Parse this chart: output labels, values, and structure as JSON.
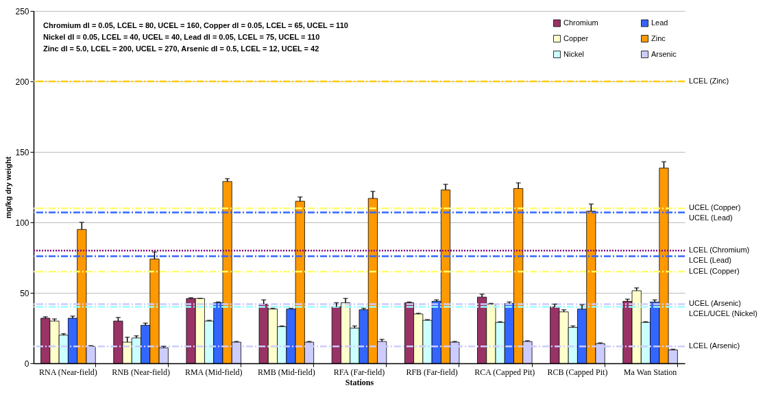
{
  "chart_data": {
    "type": "bar",
    "xlabel": "Stations",
    "ylabel": "mg/kg dry weight",
    "categories": [
      "RNA (Near-field)",
      "RNB (Near-field)",
      "RMA (Mid-field)",
      "RMB (Mid-field)",
      "RFA (Far-field)",
      "RFB (Far-field)",
      "RCA (Capped Pit)",
      "RCB (Capped Pit)",
      "Ma Wan Station"
    ],
    "series": [
      {
        "name": "Chromium",
        "color": "#993366",
        "values": [
          32,
          30,
          46,
          42,
          40,
          43,
          47,
          40,
          44
        ],
        "errors": [
          [
            32,
            33
          ],
          [
            30,
            32.5
          ],
          [
            46,
            46.5
          ],
          [
            42,
            45
          ],
          [
            40,
            43
          ],
          [
            43,
            43.5
          ],
          [
            47,
            49
          ],
          [
            40,
            42
          ],
          [
            44,
            45.5
          ]
        ]
      },
      {
        "name": "Copper",
        "color": "#ffffcc",
        "values": [
          30,
          15,
          46,
          38.5,
          43,
          35,
          42,
          36.5,
          51.5
        ],
        "errors": [
          [
            30,
            31.5
          ],
          [
            15,
            18.5
          ],
          [
            46,
            46
          ],
          [
            38.5,
            39
          ],
          [
            43,
            46
          ],
          [
            35,
            35.5
          ],
          [
            42,
            42.5
          ],
          [
            36.5,
            38
          ],
          [
            51.5,
            53.5
          ]
        ]
      },
      {
        "name": "Nickel",
        "color": "#ccffff",
        "values": [
          20,
          18,
          30,
          26,
          25,
          30.5,
          29,
          25.5,
          29
        ],
        "errors": [
          [
            20,
            21
          ],
          [
            18,
            19.5
          ],
          [
            30,
            30.5
          ],
          [
            26,
            26.5
          ],
          [
            25,
            26.5
          ],
          [
            30.5,
            31
          ],
          [
            29,
            29.5
          ],
          [
            25.5,
            26.5
          ],
          [
            29,
            29.5
          ]
        ]
      },
      {
        "name": "Lead",
        "color": "#3366ff",
        "values": [
          32,
          27,
          43,
          38.5,
          38,
          44,
          42.5,
          38.5,
          43.5
        ],
        "errors": [
          [
            32,
            33.5
          ],
          [
            27,
            28.5
          ],
          [
            43,
            43.5
          ],
          [
            38.5,
            39
          ],
          [
            38,
            39
          ],
          [
            44,
            45
          ],
          [
            42.5,
            43.5
          ],
          [
            38.5,
            41.5
          ],
          [
            43.5,
            45
          ]
        ]
      },
      {
        "name": "Zinc",
        "color": "#ff9900",
        "values": [
          95,
          74,
          129,
          115,
          117,
          123,
          124,
          108,
          138.5
        ],
        "errors": [
          [
            95,
            100
          ],
          [
            74,
            79
          ],
          [
            129,
            131
          ],
          [
            115,
            118
          ],
          [
            117,
            122
          ],
          [
            123,
            127
          ],
          [
            124,
            128
          ],
          [
            108,
            113
          ],
          [
            138.5,
            143
          ]
        ]
      },
      {
        "name": "Arsenic",
        "color": "#ccccff",
        "values": [
          12,
          11,
          15,
          15,
          15.5,
          15,
          15.5,
          14,
          9.5
        ],
        "errors": [
          [
            12,
            12.5
          ],
          [
            11,
            12
          ],
          [
            15,
            15.5
          ],
          [
            15,
            15.5
          ],
          [
            15.5,
            17
          ],
          [
            15,
            15.5
          ],
          [
            15.5,
            16
          ],
          [
            14,
            14.5
          ],
          [
            9.5,
            10
          ]
        ]
      }
    ],
    "ylim": [
      0,
      250
    ],
    "yticks": [
      0,
      50,
      100,
      150,
      200,
      250
    ],
    "grid": "y",
    "legend": "top right",
    "ref_lines": [
      {
        "axis": "y",
        "value": 200,
        "label": "LCEL (Zinc)",
        "color": "#ffcc00",
        "line_style": "dashed"
      },
      {
        "axis": "y",
        "value": 110,
        "label": "UCEL (Copper)",
        "color": "#ffff66",
        "line_style": "dashed"
      },
      {
        "axis": "y",
        "value": 107,
        "label": "UCEL (Lead)",
        "color": "#3366ff",
        "line_style": "dashed"
      },
      {
        "axis": "y",
        "value": 80,
        "label": "LCEL (Chromium)",
        "color": "#800080",
        "line_style": "dotted"
      },
      {
        "axis": "y",
        "value": 76,
        "label": "LCEL (Lead)",
        "color": "#3366ff",
        "line_style": "dashed"
      },
      {
        "axis": "y",
        "value": 65,
        "label": "LCEL (Copper)",
        "color": "#ffff66",
        "line_style": "dashed"
      },
      {
        "axis": "y",
        "value": 42,
        "label": "UCEL (Arsenic)",
        "color": "#ccccff",
        "line_style": "dashed"
      },
      {
        "axis": "y",
        "value": 40,
        "label": "LCEL/UCEL (Nickel)",
        "color": "#99ffff",
        "line_style": "dashed"
      },
      {
        "axis": "y",
        "value": 12,
        "label": "LCEL (Arsenic)",
        "color": "#ccccff",
        "line_style": "dashed"
      }
    ],
    "annotations": [
      "Chromium dl = 0.05, LCEL = 80, UCEL = 160, Copper dl = 0.05, LCEL = 65, UCEL = 110",
      "Nickel dl = 0.05, LCEL = 40, UCEL = 40, Lead dl = 0.05, LCEL = 75, UCEL = 110",
      "Zinc dl = 5.0, LCEL = 200, UCEL = 270, Arsenic dl = 0.5, LCEL = 12, UCEL = 42"
    ]
  }
}
